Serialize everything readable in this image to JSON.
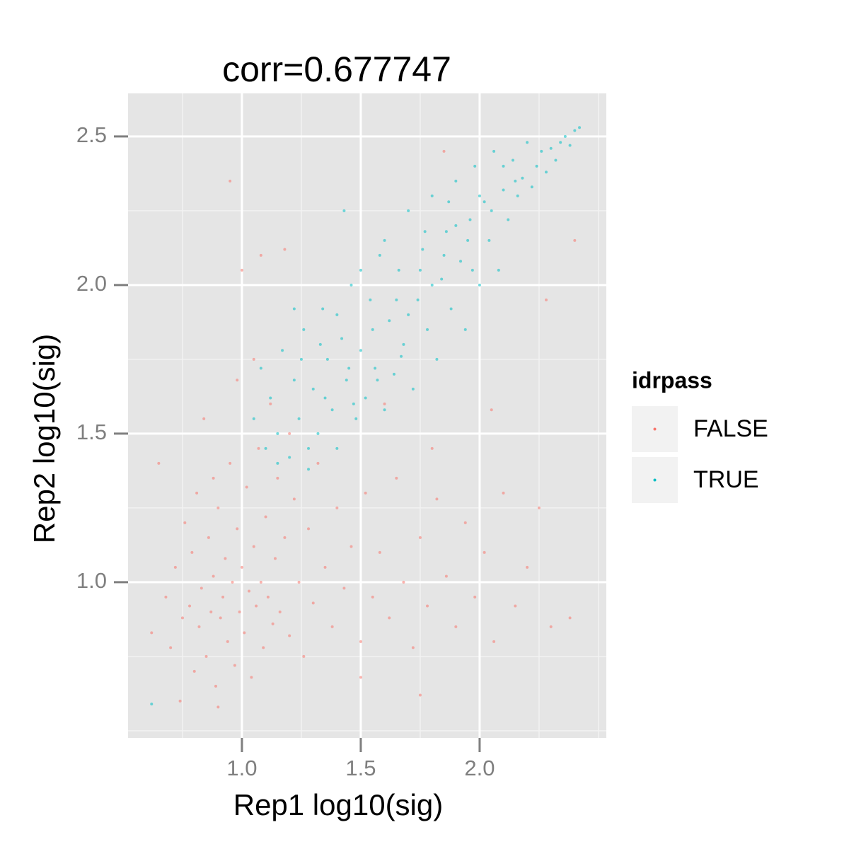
{
  "chart_data": {
    "type": "scatter",
    "title": "corr=0.677747",
    "x_label": "Rep1 log10(sig)",
    "y_label": "Rep2 log10(sig)",
    "legend_title": "idrpass",
    "legend_position": "right",
    "xlim": [
      0.521,
      2.533
    ],
    "ylim": [
      0.476,
      2.645
    ],
    "xticks": [
      {
        "value": 1.0,
        "label": "1.0"
      },
      1.5,
      {
        "value": 2.0,
        "label": "2.0"
      }
    ],
    "yticks": [
      {
        "value": 1.0,
        "label": "1.0"
      },
      1.5,
      {
        "value": 2.0,
        "label": "2.0"
      },
      2.5
    ],
    "xminor": [
      0.75,
      1.25,
      1.75,
      2.25,
      2.5
    ],
    "yminor": [
      0.5,
      0.75,
      1.25,
      1.75,
      2.25
    ],
    "grid": true,
    "series": [
      {
        "name": "FALSE",
        "color": "#F8766D",
        "x": [
          0.62,
          0.65,
          0.68,
          0.7,
          0.72,
          0.74,
          0.75,
          0.76,
          0.78,
          0.79,
          0.8,
          0.81,
          0.82,
          0.83,
          0.84,
          0.85,
          0.86,
          0.87,
          0.88,
          0.89,
          0.9,
          0.91,
          0.92,
          0.93,
          0.94,
          0.95,
          0.96,
          0.97,
          0.98,
          0.99,
          1.0,
          1.01,
          1.02,
          1.03,
          1.04,
          1.05,
          1.06,
          1.07,
          1.08,
          1.09,
          1.1,
          1.11,
          1.12,
          1.13,
          1.14,
          1.15,
          1.16,
          1.18,
          1.2,
          1.22,
          1.24,
          1.26,
          1.28,
          1.3,
          1.32,
          1.35,
          1.38,
          1.4,
          1.43,
          1.46,
          1.5,
          1.52,
          1.55,
          1.58,
          1.62,
          1.65,
          1.68,
          1.72,
          1.75,
          1.78,
          1.82,
          1.86,
          1.9,
          1.94,
          1.98,
          2.02,
          2.06,
          2.1,
          2.15,
          2.2,
          2.25,
          2.3,
          2.38,
          1.0,
          0.95,
          1.08,
          1.18,
          1.85,
          2.4,
          2.28,
          1.5,
          1.75,
          0.9,
          1.05,
          0.98,
          1.6,
          1.8,
          2.05,
          0.88,
          1.2
        ],
        "values": [
          0.83,
          1.4,
          0.95,
          0.78,
          1.05,
          0.6,
          0.88,
          1.2,
          0.92,
          1.1,
          0.7,
          1.3,
          0.85,
          0.98,
          1.55,
          0.75,
          1.15,
          0.9,
          1.02,
          0.65,
          1.25,
          0.88,
          0.95,
          1.08,
          0.8,
          1.4,
          1.0,
          0.72,
          1.18,
          0.9,
          1.05,
          0.83,
          1.32,
          0.97,
          0.68,
          1.12,
          0.92,
          1.45,
          1.0,
          0.78,
          1.22,
          0.95,
          1.6,
          0.86,
          1.08,
          1.35,
          0.9,
          1.15,
          0.82,
          1.28,
          1.0,
          0.75,
          1.18,
          0.93,
          1.4,
          1.05,
          0.85,
          1.25,
          0.98,
          1.12,
          0.8,
          1.3,
          0.95,
          1.1,
          0.88,
          1.35,
          1.0,
          0.78,
          1.15,
          0.92,
          1.28,
          1.02,
          0.85,
          1.2,
          0.95,
          1.1,
          0.8,
          1.3,
          0.92,
          1.05,
          1.25,
          0.85,
          0.88,
          2.05,
          2.35,
          2.1,
          2.12,
          2.45,
          2.15,
          1.95,
          0.68,
          0.62,
          0.58,
          1.75,
          1.68,
          1.6,
          1.45,
          1.58,
          1.35,
          1.5
        ]
      },
      {
        "name": "TRUE",
        "color": "#00BFC4",
        "x": [
          1.05,
          1.08,
          1.1,
          1.12,
          1.15,
          1.17,
          1.2,
          1.22,
          1.24,
          1.26,
          1.28,
          1.3,
          1.32,
          1.34,
          1.36,
          1.38,
          1.4,
          1.42,
          1.44,
          1.46,
          1.48,
          1.5,
          1.52,
          1.54,
          1.56,
          1.58,
          1.6,
          1.62,
          1.64,
          1.66,
          1.68,
          1.7,
          1.72,
          1.74,
          1.76,
          1.78,
          1.8,
          1.82,
          1.84,
          1.86,
          1.88,
          1.9,
          1.92,
          1.94,
          1.96,
          1.98,
          2.0,
          2.02,
          2.04,
          2.06,
          2.08,
          2.1,
          2.12,
          2.14,
          2.16,
          2.18,
          2.2,
          2.22,
          2.24,
          2.26,
          2.28,
          2.3,
          2.32,
          2.34,
          2.36,
          2.38,
          2.4,
          2.42,
          1.25,
          1.35,
          1.45,
          1.55,
          1.65,
          1.75,
          1.85,
          1.95,
          2.05,
          2.15,
          1.15,
          1.28,
          1.4,
          1.5,
          1.6,
          1.7,
          1.8,
          1.9,
          2.0,
          2.1,
          0.62,
          1.22,
          1.33,
          1.47,
          1.57,
          1.67,
          1.77,
          1.87,
          1.97,
          1.43
        ],
        "values": [
          1.55,
          1.72,
          1.45,
          1.62,
          1.5,
          1.78,
          1.42,
          1.68,
          1.55,
          1.85,
          1.38,
          1.65,
          1.5,
          1.92,
          1.75,
          1.58,
          1.45,
          1.82,
          1.68,
          2.0,
          1.55,
          1.78,
          1.62,
          1.95,
          1.72,
          2.1,
          1.58,
          1.88,
          1.7,
          2.05,
          1.8,
          2.25,
          1.65,
          1.95,
          2.12,
          1.85,
          2.3,
          1.75,
          2.02,
          2.18,
          1.92,
          2.35,
          2.08,
          1.85,
          2.22,
          2.4,
          2.0,
          2.28,
          2.15,
          2.45,
          2.05,
          2.32,
          2.22,
          2.42,
          2.3,
          2.36,
          2.48,
          2.33,
          2.4,
          2.45,
          2.38,
          2.46,
          2.42,
          2.48,
          2.5,
          2.47,
          2.52,
          2.53,
          1.75,
          1.62,
          1.72,
          1.85,
          1.95,
          2.05,
          2.1,
          2.15,
          2.25,
          2.35,
          1.4,
          1.45,
          1.9,
          2.05,
          2.15,
          1.9,
          2.0,
          2.2,
          2.3,
          2.4,
          0.59,
          1.92,
          1.8,
          1.6,
          1.68,
          1.76,
          2.18,
          2.28,
          2.05,
          2.25
        ]
      }
    ]
  }
}
